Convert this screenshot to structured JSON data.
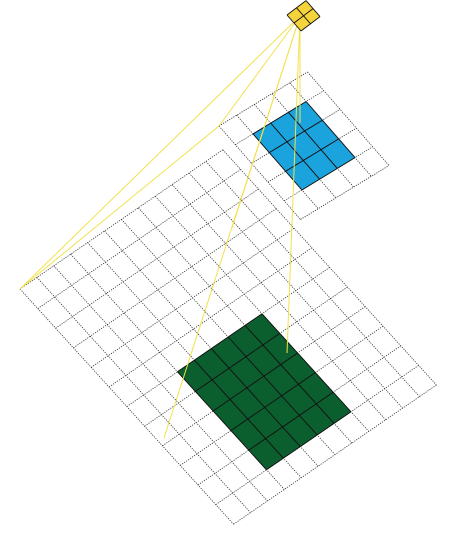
{
  "colors": {
    "background": "#ffffff",
    "grid_line": "#333333",
    "large_region": "#0b5e2e",
    "middle_region": "#1aa3dc",
    "kernel": "#f4d43a",
    "projection": "#f2e14c"
  },
  "layers": [
    {
      "id": "input-layer",
      "grid_cells": 12,
      "highlight_cells": 5
    },
    {
      "id": "hidden-layer",
      "grid_cells": 5,
      "highlight_cells": 3
    },
    {
      "id": "output-layer",
      "grid_cells": 2,
      "highlight_cells": 2
    }
  ]
}
